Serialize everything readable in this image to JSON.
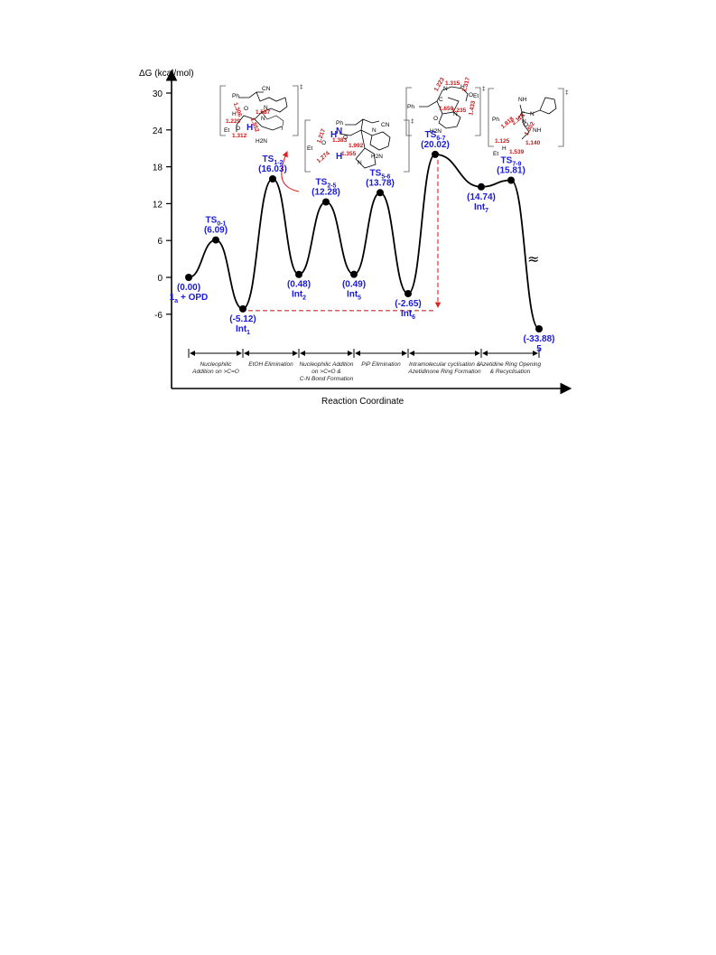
{
  "chart_data": {
    "type": "line",
    "ylabel": "ΔG (kcal/mol)",
    "xlabel": "Reaction Coordinate",
    "ylim": [
      -6,
      30
    ],
    "yticks": [
      "30",
      "24",
      "18",
      "12",
      "6",
      "0",
      "-6"
    ],
    "points": [
      {
        "name": "1a + OPD",
        "value": 0.0,
        "value_label": "(0.00)",
        "kind": "min",
        "label_pos": "below",
        "name_sub": "a",
        "name_main": "1",
        "name_tail": " + OPD"
      },
      {
        "name": "TS0-1",
        "value": 6.09,
        "value_label": "(6.09)",
        "kind": "ts",
        "label_pos": "above",
        "name_main": "TS",
        "name_sub": "0-1",
        "name_tail": ""
      },
      {
        "name": "Int1",
        "value": -5.12,
        "value_label": "(-5.12)",
        "kind": "min",
        "label_pos": "below",
        "name_main": "Int",
        "name_sub": "1",
        "name_tail": ""
      },
      {
        "name": "TS1-2",
        "value": 16.03,
        "value_label": "(16.03)",
        "kind": "ts",
        "label_pos": "above",
        "name_main": "TS",
        "name_sub": "1-2",
        "name_tail": ""
      },
      {
        "name": "Int2",
        "value": 0.48,
        "value_label": "(0.48)",
        "kind": "min",
        "label_pos": "below",
        "name_main": "Int",
        "name_sub": "2",
        "name_tail": ""
      },
      {
        "name": "TS2-5",
        "value": 12.28,
        "value_label": "(12.28)",
        "kind": "ts",
        "label_pos": "above",
        "name_main": "TS",
        "name_sub": "2-5",
        "name_tail": ""
      },
      {
        "name": "Int5",
        "value": 0.49,
        "value_label": "(0.49)",
        "kind": "min",
        "label_pos": "below",
        "name_main": "Int",
        "name_sub": "5",
        "name_tail": ""
      },
      {
        "name": "TS5-6",
        "value": 13.78,
        "value_label": "(13.78)",
        "kind": "ts",
        "label_pos": "above",
        "name_main": "TS",
        "name_sub": "5-6",
        "name_tail": ""
      },
      {
        "name": "Int6",
        "value": -2.65,
        "value_label": "(-2.65)",
        "kind": "min",
        "label_pos": "below",
        "name_main": "Int",
        "name_sub": "6",
        "name_tail": ""
      },
      {
        "name": "TS6-7",
        "value": 20.02,
        "value_label": "(20.02)",
        "kind": "ts",
        "label_pos": "above",
        "name_main": "TS",
        "name_sub": "6-7",
        "name_tail": ""
      },
      {
        "name": "Int7",
        "value": 14.74,
        "value_label": "(14.74)",
        "kind": "min",
        "label_pos": "below",
        "name_main": "Int",
        "name_sub": "7",
        "name_tail": ""
      },
      {
        "name": "TS7-9",
        "value": 15.81,
        "value_label": "(15.81)",
        "kind": "ts",
        "label_pos": "above",
        "name_main": "TS",
        "name_sub": "7-9",
        "name_tail": ""
      },
      {
        "name": "5",
        "value": -33.88,
        "value_label": "(-33.88)",
        "kind": "min",
        "label_pos": "below",
        "name_main": "5",
        "name_sub": "",
        "name_tail": ""
      }
    ],
    "stages": [
      "Nucleophilic\nAddition on >C=O",
      "EtOH Elimination",
      "Nucleophilic Addition\non >C=O &\nC-N Bond Formation",
      "PiP Elimination",
      "Intramolecular cyclisation &\nAzetidinone Ring  Formation",
      "Azetidine Ring   Opening\n& Recyclisation"
    ],
    "axis_break": "≈",
    "colors": {
      "labels": "#1a1adb",
      "guides": "#e02020",
      "curve": "#000000"
    }
  },
  "structures": {
    "ts12": {
      "atoms": [
        "Ph",
        "CN",
        "O",
        "N",
        "H",
        "Et",
        "O",
        "H",
        "N",
        "H2N",
        "H",
        "‡"
      ],
      "distances": [
        "1.229",
        "1.312",
        "1.587",
        "1.306",
        "1.552"
      ]
    },
    "ts25": {
      "atoms": [
        "Ph",
        "CN",
        "O",
        "H",
        "N",
        "O",
        "H",
        "N",
        "H2N",
        "N",
        "Et",
        "‡"
      ],
      "distances": [
        "1.217",
        "1.383",
        "1.274",
        "1.992",
        "1.355"
      ]
    },
    "ts67": {
      "atoms": [
        "Ph",
        "N",
        "C",
        "H",
        "O",
        "Et",
        "O",
        "N",
        "H2N",
        "‡"
      ],
      "distances": [
        "1.223",
        "1.315",
        "1.659",
        "1.235",
        "1.317",
        "1.433"
      ]
    },
    "ts79": {
      "atoms": [
        "NH",
        "C",
        "N",
        "Ph",
        "N",
        "NH",
        "O",
        "H",
        "Et",
        "‡"
      ],
      "distances": [
        "1.818",
        "2.115",
        "1.302",
        "1.125",
        "1.539",
        "1.140"
      ]
    }
  }
}
